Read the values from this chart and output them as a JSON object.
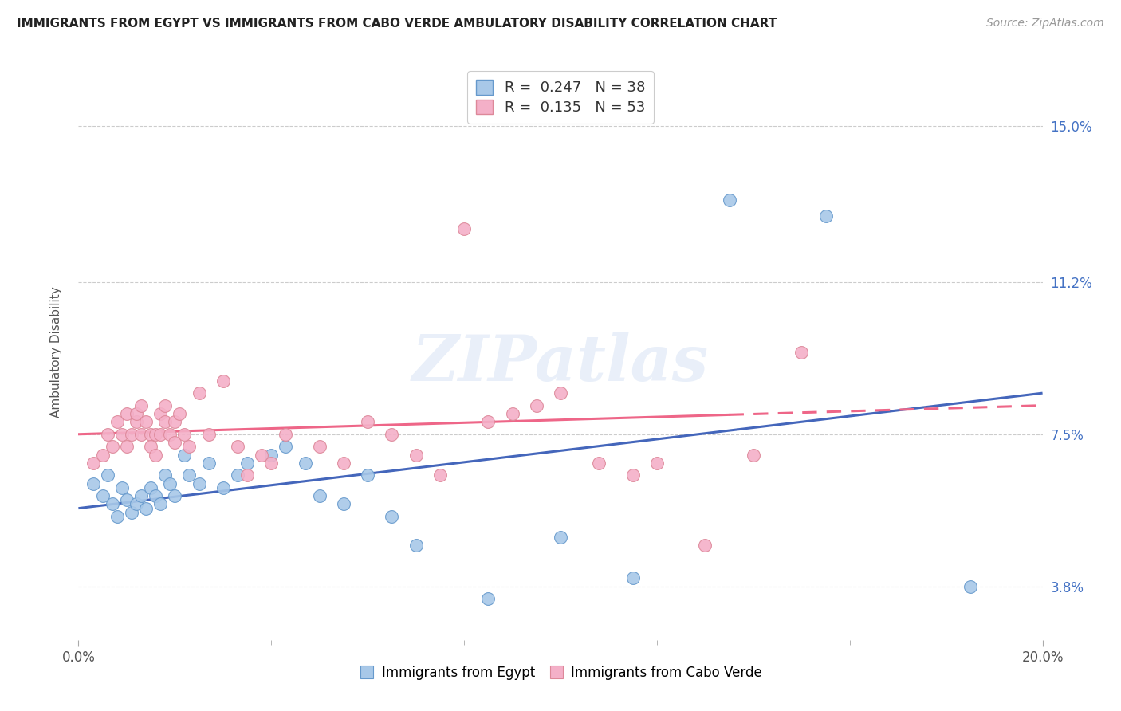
{
  "title": "IMMIGRANTS FROM EGYPT VS IMMIGRANTS FROM CABO VERDE AMBULATORY DISABILITY CORRELATION CHART",
  "source": "Source: ZipAtlas.com",
  "ylabel": "Ambulatory Disability",
  "xlim": [
    0.0,
    0.2
  ],
  "ylim": [
    0.025,
    0.165
  ],
  "yticks": [
    0.038,
    0.075,
    0.112,
    0.15
  ],
  "ytick_labels": [
    "3.8%",
    "7.5%",
    "11.2%",
    "15.0%"
  ],
  "xtick_left_label": "0.0%",
  "xtick_right_label": "20.0%",
  "egypt_color": "#a8c8e8",
  "egypt_edge_color": "#6699cc",
  "cabo_verde_color": "#f4b0c8",
  "cabo_verde_edge_color": "#dd8899",
  "egypt_line_color": "#4466bb",
  "cabo_verde_line_color": "#ee6688",
  "egypt_R": 0.247,
  "egypt_N": 38,
  "cabo_verde_R": 0.135,
  "cabo_verde_N": 53,
  "background_color": "#ffffff",
  "grid_color": "#cccccc",
  "watermark": "ZIPatlas",
  "egypt_x": [
    0.003,
    0.005,
    0.006,
    0.007,
    0.008,
    0.009,
    0.01,
    0.011,
    0.012,
    0.013,
    0.014,
    0.015,
    0.016,
    0.017,
    0.018,
    0.019,
    0.02,
    0.022,
    0.023,
    0.025,
    0.027,
    0.03,
    0.033,
    0.035,
    0.04,
    0.043,
    0.047,
    0.05,
    0.055,
    0.06,
    0.065,
    0.07,
    0.085,
    0.1,
    0.115,
    0.135,
    0.155,
    0.185
  ],
  "egypt_y": [
    0.063,
    0.06,
    0.065,
    0.058,
    0.055,
    0.062,
    0.059,
    0.056,
    0.058,
    0.06,
    0.057,
    0.062,
    0.06,
    0.058,
    0.065,
    0.063,
    0.06,
    0.07,
    0.065,
    0.063,
    0.068,
    0.062,
    0.065,
    0.068,
    0.07,
    0.072,
    0.068,
    0.06,
    0.058,
    0.065,
    0.055,
    0.048,
    0.035,
    0.05,
    0.04,
    0.132,
    0.128,
    0.038
  ],
  "cabo_verde_x": [
    0.003,
    0.005,
    0.006,
    0.007,
    0.008,
    0.009,
    0.01,
    0.01,
    0.011,
    0.012,
    0.012,
    0.013,
    0.013,
    0.014,
    0.015,
    0.015,
    0.016,
    0.016,
    0.017,
    0.017,
    0.018,
    0.018,
    0.019,
    0.02,
    0.02,
    0.021,
    0.022,
    0.023,
    0.025,
    0.027,
    0.03,
    0.033,
    0.035,
    0.038,
    0.04,
    0.043,
    0.05,
    0.055,
    0.06,
    0.065,
    0.07,
    0.075,
    0.08,
    0.085,
    0.09,
    0.095,
    0.1,
    0.108,
    0.115,
    0.12,
    0.13,
    0.14,
    0.15
  ],
  "cabo_verde_y": [
    0.068,
    0.07,
    0.075,
    0.072,
    0.078,
    0.075,
    0.072,
    0.08,
    0.075,
    0.078,
    0.08,
    0.082,
    0.075,
    0.078,
    0.075,
    0.072,
    0.07,
    0.075,
    0.08,
    0.075,
    0.078,
    0.082,
    0.075,
    0.073,
    0.078,
    0.08,
    0.075,
    0.072,
    0.085,
    0.075,
    0.088,
    0.072,
    0.065,
    0.07,
    0.068,
    0.075,
    0.072,
    0.068,
    0.078,
    0.075,
    0.07,
    0.065,
    0.125,
    0.078,
    0.08,
    0.082,
    0.085,
    0.068,
    0.065,
    0.068,
    0.048,
    0.07,
    0.095
  ],
  "legend_R_color": "#4466bb",
  "legend_N_color": "#ee4422",
  "title_fontsize": 11,
  "source_fontsize": 10,
  "tick_fontsize": 12,
  "ylabel_fontsize": 11
}
